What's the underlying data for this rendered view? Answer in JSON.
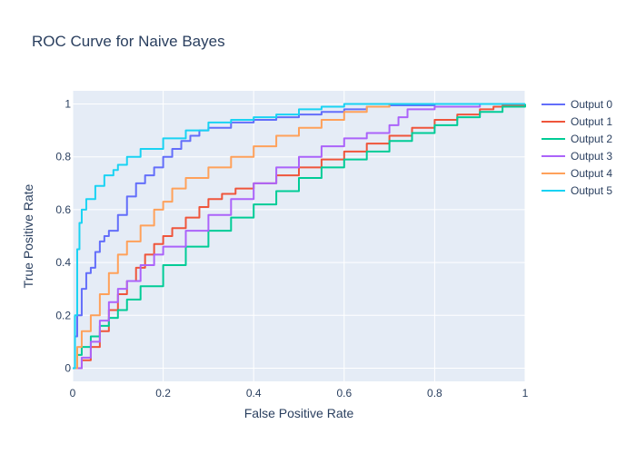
{
  "chart_data": {
    "type": "line",
    "title": "ROC Curve for Naive Bayes",
    "xlabel": "False Positive Rate",
    "ylabel": "True Positive Rate",
    "xlim": [
      0,
      1
    ],
    "ylim": [
      -0.05,
      1.05
    ],
    "xticks": [
      "0",
      "0.2",
      "0.4",
      "0.6",
      "0.8",
      "1"
    ],
    "xtick_values": [
      0,
      0.2,
      0.4,
      0.6,
      0.8,
      1
    ],
    "yticks": [
      "0",
      "0.2",
      "0.4",
      "0.6",
      "0.8",
      "1"
    ],
    "ytick_values": [
      0,
      0.2,
      0.4,
      0.6,
      0.8,
      1
    ],
    "grid": true,
    "legend_position": "right",
    "plot_background": "#e5ecf6",
    "series": [
      {
        "name": "Output 0",
        "color": "#636efa",
        "x": [
          0,
          0.005,
          0.01,
          0.02,
          0.03,
          0.04,
          0.05,
          0.06,
          0.07,
          0.08,
          0.1,
          0.12,
          0.14,
          0.16,
          0.18,
          0.2,
          0.22,
          0.24,
          0.26,
          0.28,
          0.3,
          0.35,
          0.4,
          0.45,
          0.5,
          0.55,
          0.6,
          0.65,
          0.7,
          0.8,
          0.9,
          1
        ],
        "y": [
          0,
          0.12,
          0.2,
          0.3,
          0.36,
          0.38,
          0.44,
          0.48,
          0.5,
          0.52,
          0.58,
          0.65,
          0.7,
          0.73,
          0.76,
          0.8,
          0.83,
          0.86,
          0.88,
          0.9,
          0.91,
          0.93,
          0.94,
          0.95,
          0.96,
          0.97,
          0.98,
          0.99,
          0.995,
          1,
          1,
          1
        ]
      },
      {
        "name": "Output 1",
        "color": "#ef553b",
        "x": [
          0,
          0.02,
          0.04,
          0.06,
          0.08,
          0.1,
          0.12,
          0.14,
          0.16,
          0.18,
          0.2,
          0.22,
          0.25,
          0.28,
          0.3,
          0.33,
          0.36,
          0.4,
          0.45,
          0.5,
          0.55,
          0.6,
          0.65,
          0.7,
          0.75,
          0.8,
          0.85,
          0.9,
          0.93,
          0.95,
          1
        ],
        "y": [
          0,
          0.03,
          0.08,
          0.14,
          0.22,
          0.28,
          0.33,
          0.38,
          0.43,
          0.47,
          0.5,
          0.53,
          0.57,
          0.61,
          0.64,
          0.66,
          0.68,
          0.7,
          0.73,
          0.76,
          0.79,
          0.82,
          0.85,
          0.88,
          0.91,
          0.94,
          0.96,
          0.98,
          0.99,
          0.995,
          1
        ]
      },
      {
        "name": "Output 2",
        "color": "#00cc96",
        "x": [
          0,
          0.01,
          0.02,
          0.04,
          0.06,
          0.08,
          0.1,
          0.12,
          0.15,
          0.2,
          0.25,
          0.3,
          0.35,
          0.4,
          0.45,
          0.5,
          0.55,
          0.6,
          0.65,
          0.7,
          0.75,
          0.8,
          0.85,
          0.9,
          0.95,
          1
        ],
        "y": [
          0,
          0.05,
          0.08,
          0.12,
          0.16,
          0.19,
          0.22,
          0.26,
          0.31,
          0.39,
          0.46,
          0.52,
          0.57,
          0.62,
          0.67,
          0.72,
          0.76,
          0.79,
          0.82,
          0.86,
          0.89,
          0.92,
          0.95,
          0.97,
          0.99,
          1
        ]
      },
      {
        "name": "Output 3",
        "color": "#ab63fa",
        "x": [
          0,
          0.02,
          0.04,
          0.06,
          0.08,
          0.1,
          0.12,
          0.15,
          0.18,
          0.2,
          0.25,
          0.3,
          0.35,
          0.4,
          0.45,
          0.5,
          0.55,
          0.6,
          0.65,
          0.7,
          0.72,
          0.74,
          0.8,
          0.9,
          1
        ],
        "y": [
          0,
          0.04,
          0.1,
          0.18,
          0.25,
          0.3,
          0.33,
          0.39,
          0.43,
          0.46,
          0.52,
          0.58,
          0.64,
          0.7,
          0.76,
          0.8,
          0.84,
          0.87,
          0.89,
          0.92,
          0.95,
          0.98,
          0.99,
          1,
          1
        ]
      },
      {
        "name": "Output 4",
        "color": "#ffa15a",
        "x": [
          0,
          0.01,
          0.02,
          0.04,
          0.06,
          0.08,
          0.1,
          0.12,
          0.15,
          0.18,
          0.2,
          0.22,
          0.25,
          0.3,
          0.35,
          0.4,
          0.45,
          0.5,
          0.55,
          0.6,
          0.65,
          0.7,
          0.8,
          0.9,
          1
        ],
        "y": [
          0,
          0.08,
          0.14,
          0.2,
          0.28,
          0.36,
          0.43,
          0.48,
          0.54,
          0.6,
          0.63,
          0.68,
          0.72,
          0.76,
          0.8,
          0.84,
          0.88,
          0.91,
          0.94,
          0.97,
          0.99,
          1,
          1,
          1,
          1
        ]
      },
      {
        "name": "Output 5",
        "color": "#19d3f3",
        "x": [
          0,
          0.005,
          0.01,
          0.015,
          0.02,
          0.03,
          0.05,
          0.07,
          0.09,
          0.1,
          0.12,
          0.15,
          0.2,
          0.25,
          0.3,
          0.35,
          0.4,
          0.45,
          0.5,
          0.55,
          0.6,
          0.7,
          0.8,
          0.9,
          1
        ],
        "y": [
          0,
          0.2,
          0.45,
          0.55,
          0.6,
          0.64,
          0.69,
          0.73,
          0.75,
          0.77,
          0.8,
          0.83,
          0.87,
          0.9,
          0.93,
          0.94,
          0.95,
          0.96,
          0.98,
          0.99,
          1,
          1,
          1,
          1,
          1
        ]
      }
    ]
  }
}
